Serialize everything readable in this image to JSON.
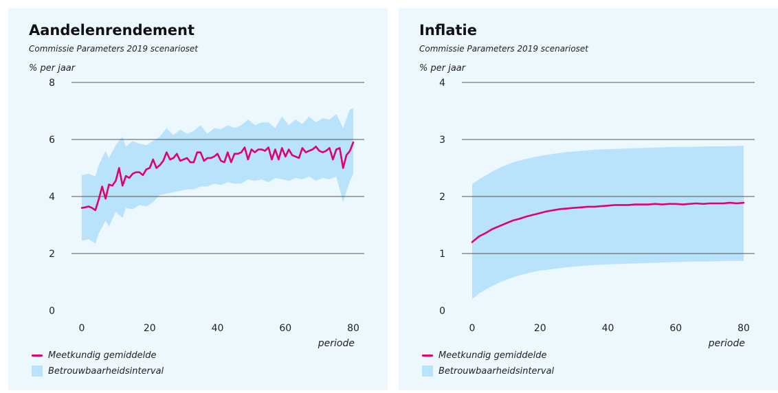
{
  "colors": {
    "mean_line": "#e0006e",
    "band": "#b8e3fa",
    "panel_bg": "#ecf8fe",
    "gridline": "#555555"
  },
  "chart_data": [
    {
      "type": "line",
      "title": "Aandelenrendement",
      "subtitle": "Commissie Parameters 2019 scenarioset",
      "ylabel": "% per jaar",
      "xlabel": "periode",
      "xlim": [
        0,
        80
      ],
      "ylim": [
        0,
        8
      ],
      "xticks": [
        0,
        20,
        40,
        60,
        80
      ],
      "yticks": [
        0,
        2,
        4,
        6,
        8
      ],
      "grid": true,
      "legend": {
        "placement": "bottom-left",
        "entries": [
          "Meetkundig gemiddelde",
          "Betrouwbaarheidsinterval"
        ]
      },
      "series": [
        {
          "name": "Meetkundig gemiddelde",
          "kind": "line",
          "x": [
            0,
            1,
            2,
            3,
            4,
            5,
            6,
            7,
            8,
            9,
            10,
            11,
            12,
            13,
            14,
            15,
            16,
            17,
            18,
            19,
            20,
            21,
            22,
            23,
            24,
            25,
            26,
            27,
            28,
            29,
            30,
            31,
            32,
            33,
            34,
            35,
            36,
            37,
            38,
            39,
            40,
            41,
            42,
            43,
            44,
            45,
            46,
            47,
            48,
            49,
            50,
            51,
            52,
            53,
            54,
            55,
            56,
            57,
            58,
            59,
            60,
            61,
            62,
            63,
            64,
            65,
            66,
            67,
            68,
            69,
            70,
            71,
            72,
            73,
            74,
            75,
            76,
            77,
            78,
            79,
            80
          ],
          "y": [
            3.6,
            3.62,
            3.65,
            3.6,
            3.52,
            3.9,
            4.35,
            3.92,
            4.42,
            4.38,
            4.55,
            5.0,
            4.38,
            4.72,
            4.65,
            4.8,
            4.85,
            4.85,
            4.75,
            4.95,
            5.0,
            5.3,
            5.0,
            5.1,
            5.25,
            5.55,
            5.3,
            5.35,
            5.5,
            5.25,
            5.3,
            5.35,
            5.2,
            5.2,
            5.55,
            5.55,
            5.25,
            5.35,
            5.35,
            5.4,
            5.5,
            5.25,
            5.2,
            5.55,
            5.2,
            5.5,
            5.5,
            5.55,
            5.72,
            5.3,
            5.65,
            5.55,
            5.65,
            5.65,
            5.6,
            5.72,
            5.3,
            5.65,
            5.3,
            5.7,
            5.4,
            5.65,
            5.45,
            5.4,
            5.35,
            5.7,
            5.55,
            5.6,
            5.65,
            5.75,
            5.6,
            5.55,
            5.6,
            5.7,
            5.3,
            5.65,
            5.7,
            5.0,
            5.45,
            5.6,
            5.9
          ]
        },
        {
          "name": "Betrouwbaarheidsinterval",
          "kind": "band",
          "x": [
            0,
            2,
            4,
            5,
            7,
            8,
            10,
            12,
            13,
            15,
            17,
            19,
            21,
            23,
            25,
            27,
            29,
            31,
            33,
            35,
            37,
            39,
            41,
            43,
            45,
            47,
            49,
            51,
            53,
            55,
            57,
            59,
            61,
            63,
            65,
            67,
            69,
            71,
            73,
            75,
            77,
            79,
            80
          ],
          "upper": [
            4.75,
            4.8,
            4.7,
            5.1,
            5.6,
            5.35,
            5.8,
            6.1,
            5.75,
            5.95,
            5.85,
            5.8,
            5.95,
            6.1,
            6.4,
            6.15,
            6.35,
            6.2,
            6.3,
            6.5,
            6.2,
            6.4,
            6.35,
            6.5,
            6.4,
            6.5,
            6.7,
            6.5,
            6.6,
            6.6,
            6.4,
            6.8,
            6.5,
            6.7,
            6.55,
            6.8,
            6.6,
            6.75,
            6.7,
            6.9,
            6.4,
            7.05,
            7.1
          ],
          "lower": [
            2.45,
            2.5,
            2.35,
            2.7,
            3.15,
            2.95,
            3.45,
            3.25,
            3.6,
            3.55,
            3.7,
            3.65,
            3.8,
            4.05,
            4.1,
            4.15,
            4.2,
            4.25,
            4.25,
            4.35,
            4.35,
            4.45,
            4.4,
            4.5,
            4.45,
            4.45,
            4.6,
            4.55,
            4.6,
            4.5,
            4.65,
            4.6,
            4.55,
            4.65,
            4.6,
            4.7,
            4.55,
            4.65,
            4.6,
            4.7,
            3.8,
            4.55,
            4.8
          ]
        }
      ]
    },
    {
      "type": "line",
      "title": "Inflatie",
      "subtitle": "Commissie Parameters 2019 scenarioset",
      "ylabel": "% per jaar",
      "xlabel": "periode",
      "xlim": [
        0,
        80
      ],
      "ylim": [
        0,
        4
      ],
      "xticks": [
        0,
        20,
        40,
        60,
        80
      ],
      "yticks": [
        0,
        1,
        2,
        3,
        4
      ],
      "grid": true,
      "legend": {
        "placement": "bottom-left",
        "entries": [
          "Meetkundig gemiddelde",
          "Betrouwbaarheidsinterval"
        ]
      },
      "series": [
        {
          "name": "Meetkundig gemiddelde",
          "kind": "line",
          "x": [
            0,
            2,
            4,
            6,
            8,
            10,
            12,
            14,
            16,
            18,
            20,
            22,
            24,
            26,
            28,
            30,
            32,
            34,
            36,
            38,
            40,
            42,
            44,
            46,
            48,
            50,
            52,
            54,
            56,
            58,
            60,
            62,
            64,
            66,
            68,
            70,
            72,
            74,
            76,
            78,
            80
          ],
          "y": [
            1.2,
            1.3,
            1.36,
            1.43,
            1.48,
            1.53,
            1.58,
            1.61,
            1.65,
            1.68,
            1.71,
            1.74,
            1.76,
            1.78,
            1.79,
            1.8,
            1.81,
            1.82,
            1.82,
            1.83,
            1.84,
            1.85,
            1.85,
            1.85,
            1.86,
            1.86,
            1.86,
            1.87,
            1.86,
            1.87,
            1.87,
            1.86,
            1.87,
            1.88,
            1.87,
            1.88,
            1.88,
            1.88,
            1.89,
            1.88,
            1.89
          ]
        },
        {
          "name": "Betrouwbaarheidsinterval",
          "kind": "band",
          "x": [
            0,
            2,
            4,
            6,
            8,
            10,
            12,
            14,
            16,
            18,
            20,
            24,
            28,
            32,
            36,
            40,
            45,
            50,
            55,
            60,
            65,
            70,
            75,
            80
          ],
          "upper": [
            2.22,
            2.3,
            2.37,
            2.44,
            2.5,
            2.55,
            2.6,
            2.63,
            2.66,
            2.69,
            2.71,
            2.75,
            2.78,
            2.8,
            2.82,
            2.83,
            2.84,
            2.85,
            2.86,
            2.87,
            2.87,
            2.88,
            2.88,
            2.89
          ],
          "lower": [
            0.2,
            0.3,
            0.37,
            0.43,
            0.49,
            0.54,
            0.58,
            0.62,
            0.65,
            0.68,
            0.7,
            0.73,
            0.76,
            0.78,
            0.8,
            0.81,
            0.82,
            0.83,
            0.84,
            0.85,
            0.86,
            0.86,
            0.87,
            0.87
          ]
        }
      ]
    }
  ]
}
